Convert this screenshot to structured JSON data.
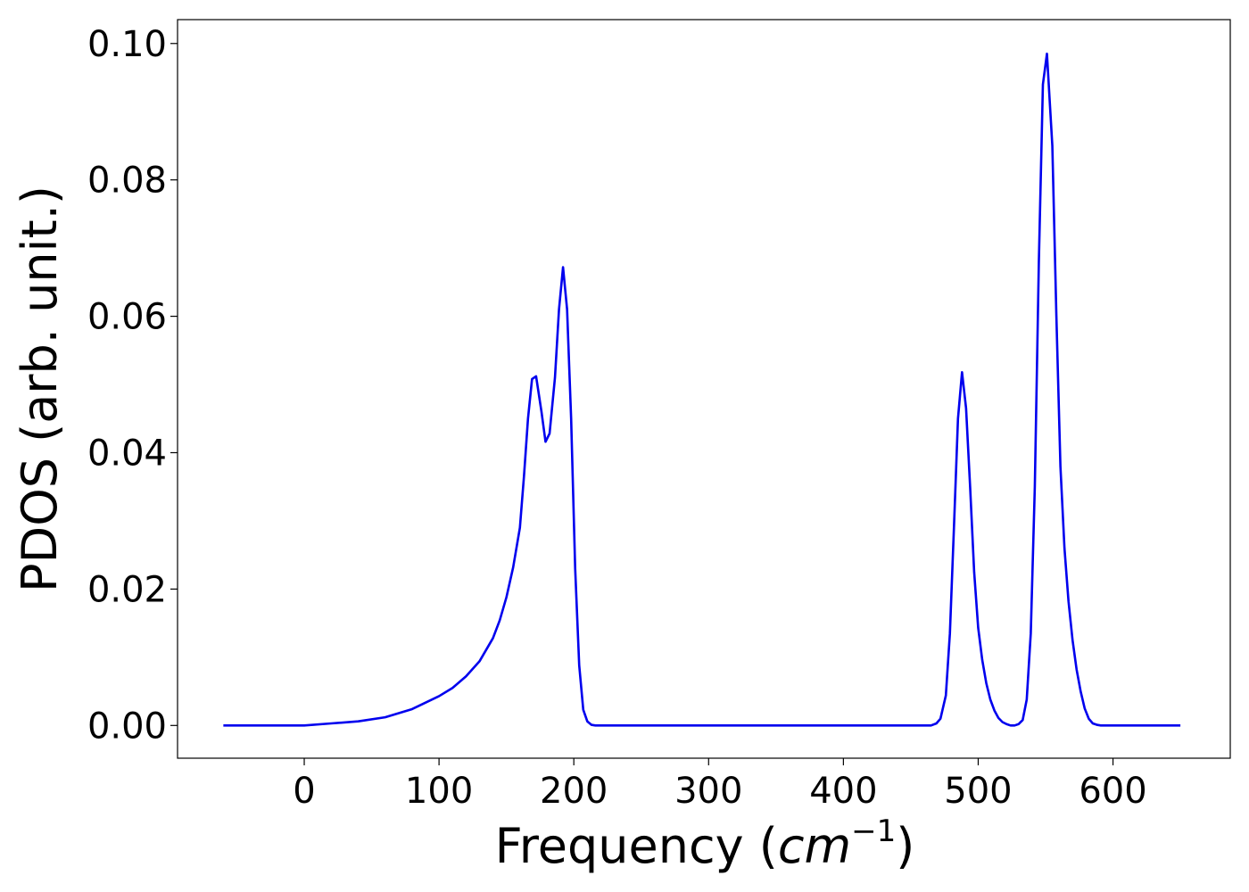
{
  "chart_data": {
    "type": "line",
    "title": "",
    "xlabel": "Frequency (",
    "xlabel_math": "cm",
    "xlabel_sup": "−1",
    "xlabel_close": ")",
    "ylabel": "PDOS (arb. unit.)",
    "xlim": [
      -94,
      687
    ],
    "ylim": [
      -0.0048,
      0.1035
    ],
    "xticks": [
      0,
      100,
      200,
      300,
      400,
      500,
      600
    ],
    "xtick_labels": [
      "0",
      "100",
      "200",
      "300",
      "400",
      "500",
      "600"
    ],
    "yticks": [
      0.0,
      0.02,
      0.04,
      0.06,
      0.08,
      0.1
    ],
    "ytick_labels": [
      "0.00",
      "0.02",
      "0.04",
      "0.06",
      "0.08",
      "0.10"
    ],
    "grid": false,
    "legend": false,
    "series": [
      {
        "color": "#0000ee",
        "x": [
          -60,
          0,
          20,
          40,
          60,
          80,
          100,
          110,
          120,
          130,
          140,
          145,
          150,
          155,
          160,
          163,
          166,
          169,
          172,
          176,
          179,
          182,
          186,
          189,
          192,
          195,
          198,
          201,
          204,
          207,
          210,
          213,
          216,
          220,
          240,
          300,
          400,
          465,
          469,
          472,
          476,
          479,
          482,
          485,
          488,
          491,
          494,
          497,
          500,
          503,
          506,
          509,
          512,
          515,
          518,
          521,
          524,
          527,
          530,
          533,
          536,
          539,
          542,
          545,
          548,
          551,
          555,
          558,
          561,
          564,
          567,
          570,
          573,
          576,
          579,
          582,
          585,
          588,
          591,
          594,
          597,
          600,
          605,
          620,
          650
        ],
        "y": [
          0.0,
          0.0,
          0.0003,
          0.0006,
          0.0012,
          0.0024,
          0.0043,
          0.0055,
          0.0072,
          0.0094,
          0.0128,
          0.0154,
          0.0188,
          0.0232,
          0.029,
          0.0365,
          0.045,
          0.0508,
          0.0512,
          0.046,
          0.0416,
          0.0428,
          0.051,
          0.061,
          0.0672,
          0.061,
          0.045,
          0.023,
          0.0088,
          0.0023,
          0.0006,
          0.0001,
          0.0,
          0.0,
          0.0,
          0.0,
          0.0,
          0.0,
          0.0003,
          0.001,
          0.0044,
          0.0135,
          0.029,
          0.045,
          0.0518,
          0.0465,
          0.035,
          0.0225,
          0.0143,
          0.0096,
          0.0062,
          0.0038,
          0.0022,
          0.0011,
          0.0005,
          0.0002,
          0.0,
          0.0,
          0.0002,
          0.0008,
          0.0038,
          0.0135,
          0.035,
          0.068,
          0.094,
          0.0985,
          0.085,
          0.06,
          0.038,
          0.026,
          0.0182,
          0.0125,
          0.0082,
          0.005,
          0.0025,
          0.001,
          0.0003,
          0.0001,
          0.0,
          0.0,
          0.0,
          0.0,
          0.0,
          0.0,
          0.0
        ]
      }
    ]
  }
}
